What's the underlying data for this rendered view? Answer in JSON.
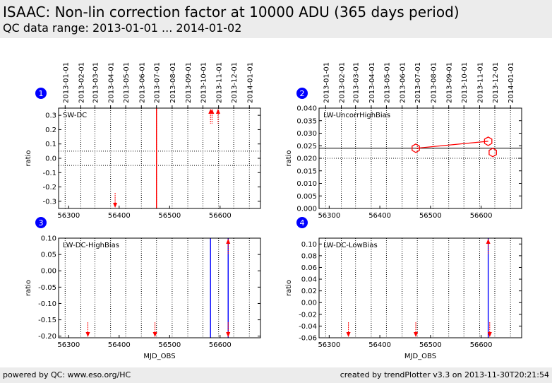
{
  "header": {
    "title": "ISAAC: Non-lin correction factor at 10000 ADU (365 days period)",
    "subtitle": "QC data range: 2013-01-01 ... 2014-01-02"
  },
  "footer": {
    "left": "powered by QC: www.eso.org/HC",
    "right": "created by trendPlotter v3.3 on 2013-11-30T20:21:54"
  },
  "colors": {
    "data": "#ff0000",
    "event_line": "#0000ff",
    "badge": "#0000ff",
    "header_bg": "#ececec"
  },
  "chart_data": [
    {
      "type": "scatter",
      "badge": "1",
      "label": "SW-DC",
      "xlabel": "",
      "ylabel": "ratio",
      "xlim": [
        56280,
        56680
      ],
      "ylim": [
        -0.35,
        0.35
      ],
      "x_ticks": [
        56300,
        56400,
        56500,
        56600
      ],
      "y_ticks": [
        -0.3,
        -0.2,
        -0.1,
        0.0,
        0.1,
        0.2,
        0.3
      ],
      "y_tick_labels": [
        "-0.3",
        "-0.2",
        "-0.1",
        "0.0",
        "0.1",
        "0.2",
        "0.3"
      ],
      "date_axis": {
        "dates": [
          "2013-01-01",
          "2013-02-01",
          "2013-03-01",
          "2013-04-01",
          "2013-05-01",
          "2013-06-01",
          "2013-07-01",
          "2013-08-01",
          "2013-09-01",
          "2013-10-01",
          "2013-11-01",
          "2013-12-01",
          "2014-01-01"
        ],
        "mjd": [
          56293,
          56324,
          56352,
          56383,
          56413,
          56444,
          56474,
          56505,
          56536,
          56566,
          56597,
          56627,
          56658
        ]
      },
      "hlines": [
        {
          "y": 0.05,
          "style": "dotted"
        },
        {
          "y": -0.05,
          "style": "dotted"
        }
      ],
      "vlines": [
        {
          "x": 56474,
          "color": "red"
        }
      ],
      "offscale_markers": [
        {
          "x": 56392,
          "direction": "down"
        },
        {
          "x": 56581,
          "direction": "up"
        },
        {
          "x": 56584,
          "direction": "up"
        },
        {
          "x": 56596,
          "direction": "up"
        }
      ],
      "series": [
        {
          "points": [],
          "line": false
        }
      ]
    },
    {
      "type": "line",
      "badge": "2",
      "label": "LW-UncorrHighBias",
      "xlabel": "",
      "ylabel": "ratio",
      "xlim": [
        56280,
        56680
      ],
      "ylim": [
        0.0,
        0.04
      ],
      "x_ticks": [
        56300,
        56400,
        56500,
        56600
      ],
      "y_ticks": [
        0.0,
        0.005,
        0.01,
        0.015,
        0.02,
        0.025,
        0.03,
        0.035,
        0.04
      ],
      "y_tick_labels": [
        "0.000",
        "0.005",
        "0.010",
        "0.015",
        "0.020",
        "0.025",
        "0.030",
        "0.035",
        "0.040"
      ],
      "date_axis": {
        "dates": [
          "2013-01-01",
          "2013-02-01",
          "2013-03-01",
          "2013-04-01",
          "2013-05-01",
          "2013-06-01",
          "2013-07-01",
          "2013-08-01",
          "2013-09-01",
          "2013-10-01",
          "2013-11-01",
          "2013-12-01",
          "2014-01-01"
        ],
        "mjd": [
          56293,
          56324,
          56352,
          56383,
          56413,
          56444,
          56474,
          56505,
          56536,
          56566,
          56597,
          56627,
          56658
        ]
      },
      "hlines": [
        {
          "y": 0.024,
          "style": "solid"
        },
        {
          "y": 0.02,
          "style": "dotted"
        }
      ],
      "vlines": [],
      "offscale_markers": [],
      "series": [
        {
          "points": [
            [
              56471,
              0.024
            ],
            [
              56614,
              0.0268
            ]
          ],
          "line": true
        },
        {
          "points": [
            [
              56623,
              0.0223
            ]
          ],
          "line": false
        }
      ]
    },
    {
      "type": "scatter",
      "badge": "3",
      "label": "LW-DC-HighBias",
      "xlabel": "MJD_OBS",
      "ylabel": "ratio",
      "xlim": [
        56280,
        56680
      ],
      "ylim": [
        -0.205,
        0.1
      ],
      "x_ticks": [
        56300,
        56400,
        56500,
        56600
      ],
      "y_ticks": [
        -0.2,
        -0.15,
        -0.1,
        -0.05,
        0.0,
        0.05,
        0.1
      ],
      "y_tick_labels": [
        "-0.20",
        "-0.15",
        "-0.10",
        "-0.05",
        "0.00",
        "0.05",
        "0.10"
      ],
      "date_axis": null,
      "hlines": [],
      "vlines": [
        {
          "x": 56581,
          "color": "blue"
        },
        {
          "x": 56616,
          "color": "blue"
        }
      ],
      "offscale_markers": [
        {
          "x": 56338,
          "direction": "down"
        },
        {
          "x": 56471,
          "direction": "down"
        },
        {
          "x": 56616,
          "direction": "up"
        },
        {
          "x": 56616,
          "direction": "down"
        }
      ],
      "series": [
        {
          "points": [],
          "line": false
        }
      ]
    },
    {
      "type": "scatter",
      "badge": "4",
      "label": "LW-DC-LowBias",
      "xlabel": "MJD_OBS",
      "ylabel": "ratio",
      "xlim": [
        56280,
        56680
      ],
      "ylim": [
        -0.06,
        0.11
      ],
      "x_ticks": [
        56300,
        56400,
        56500,
        56600
      ],
      "y_ticks": [
        -0.06,
        -0.04,
        -0.02,
        0.0,
        0.02,
        0.04,
        0.06,
        0.08,
        0.1
      ],
      "y_tick_labels": [
        "-0.06",
        "-0.04",
        "-0.02",
        "0.00",
        "0.02",
        "0.04",
        "0.06",
        "0.08",
        "0.10"
      ],
      "date_axis": null,
      "hlines": [],
      "vlines": [
        {
          "x": 56614,
          "color": "blue"
        }
      ],
      "offscale_markers": [
        {
          "x": 56338,
          "direction": "down"
        },
        {
          "x": 56471,
          "direction": "down"
        },
        {
          "x": 56614,
          "direction": "up"
        },
        {
          "x": 56617,
          "direction": "down"
        }
      ],
      "series": [
        {
          "points": [],
          "line": false
        }
      ]
    }
  ]
}
